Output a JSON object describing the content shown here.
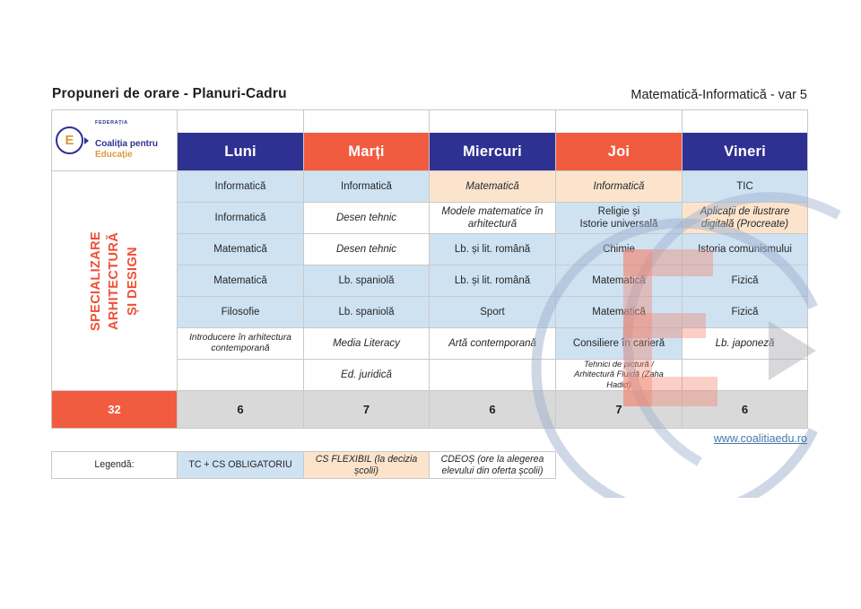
{
  "page": {
    "title_left": "Propuneri de orare - Planuri-Cadru",
    "title_right": "Matematică-Informatică - var 5"
  },
  "logo": {
    "letter": "E",
    "federation": "FEDERAȚIA",
    "name_primary": "Coaliția pentru",
    "name_accent": "Educație"
  },
  "schedule": {
    "days": [
      {
        "label": "Luni",
        "color": "navy"
      },
      {
        "label": "Marți",
        "color": "orange"
      },
      {
        "label": "Miercuri",
        "color": "navy"
      },
      {
        "label": "Joi",
        "color": "orange"
      },
      {
        "label": "Vineri",
        "color": "navy"
      }
    ],
    "row_label_text": "SPECIALIZARE ARHITECTURĂ\nȘI DESIGN",
    "rows": [
      [
        {
          "text": "Informatică",
          "type": "tc"
        },
        {
          "text": "Informatică",
          "type": "tc"
        },
        {
          "text": "Matematică",
          "type": "flex"
        },
        {
          "text": "Informatică",
          "type": "flex"
        },
        {
          "text": "TIC",
          "type": "tc"
        }
      ],
      [
        {
          "text": "Informatică",
          "type": "tc"
        },
        {
          "text": "Desen tehnic",
          "type": "cdeos"
        },
        {
          "text": "Modele matematice în\narhitectură",
          "type": "cdeos"
        },
        {
          "text": "Religie și\nIstorie universală",
          "type": "tc"
        },
        {
          "text": "Aplicații de ilustrare\ndigitală (Procreate)",
          "type": "flex"
        }
      ],
      [
        {
          "text": "Matematică",
          "type": "tc"
        },
        {
          "text": "Desen tehnic",
          "type": "cdeos"
        },
        {
          "text": "Lb. și lit. română",
          "type": "tc"
        },
        {
          "text": "Chimie",
          "type": "tc"
        },
        {
          "text": "Istoria comunismului",
          "type": "tc"
        }
      ],
      [
        {
          "text": "Matematică",
          "type": "tc"
        },
        {
          "text": "Lb. spaniolă",
          "type": "tc"
        },
        {
          "text": "Lb. și lit. română",
          "type": "tc"
        },
        {
          "text": "Matematică",
          "type": "tc"
        },
        {
          "text": "Fizică",
          "type": "tc"
        }
      ],
      [
        {
          "text": "Filosofie",
          "type": "tc"
        },
        {
          "text": "Lb. spaniolă",
          "type": "tc"
        },
        {
          "text": "Sport",
          "type": "tc"
        },
        {
          "text": "Matematică",
          "type": "tc"
        },
        {
          "text": "Fizică",
          "type": "tc"
        }
      ],
      [
        {
          "text": "Introducere în arhitectura\ncontemporană",
          "type": "cdeos",
          "size": "s"
        },
        {
          "text": "Media Literacy",
          "type": "cdeos"
        },
        {
          "text": "Artă contemporană",
          "type": "cdeos"
        },
        {
          "text": "Consiliere în carieră",
          "type": "tc"
        },
        {
          "text": "Lb. japoneză",
          "type": "cdeos"
        }
      ],
      [
        {
          "text": "",
          "type": "empty"
        },
        {
          "text": "Ed. juridică",
          "type": "cdeos"
        },
        {
          "text": "",
          "type": "empty"
        },
        {
          "text": "Tehnici de pictură /\nArhitectură Fluidă (Zaha\nHadid)",
          "type": "cdeos",
          "size": "xs"
        },
        {
          "text": "",
          "type": "empty"
        }
      ]
    ],
    "totals": {
      "week": "32",
      "days": [
        "6",
        "7",
        "6",
        "7",
        "6"
      ]
    }
  },
  "footer": {
    "link": "www.coalitiaedu.ro"
  },
  "legend": {
    "label": "Legendă:",
    "items": [
      {
        "text": "TC + CS OBLIGATORIU",
        "type": "tc"
      },
      {
        "text": "CS FLEXIBIL (la decizia\nșcolii)",
        "type": "flex"
      },
      {
        "text": "CDEOȘ (ore la alegerea\nelevului din oferta școlii)",
        "type": "cdeos"
      }
    ]
  },
  "colors": {
    "navy": "#2e3192",
    "orange": "#f15b40",
    "cell_blue": "#cfe2f2",
    "cell_peach": "#fce4cc",
    "totals_gray": "#d9d9d9",
    "accent_red": "#f04f35",
    "link_blue": "#4577aa",
    "logo_gold": "#d8973c"
  }
}
